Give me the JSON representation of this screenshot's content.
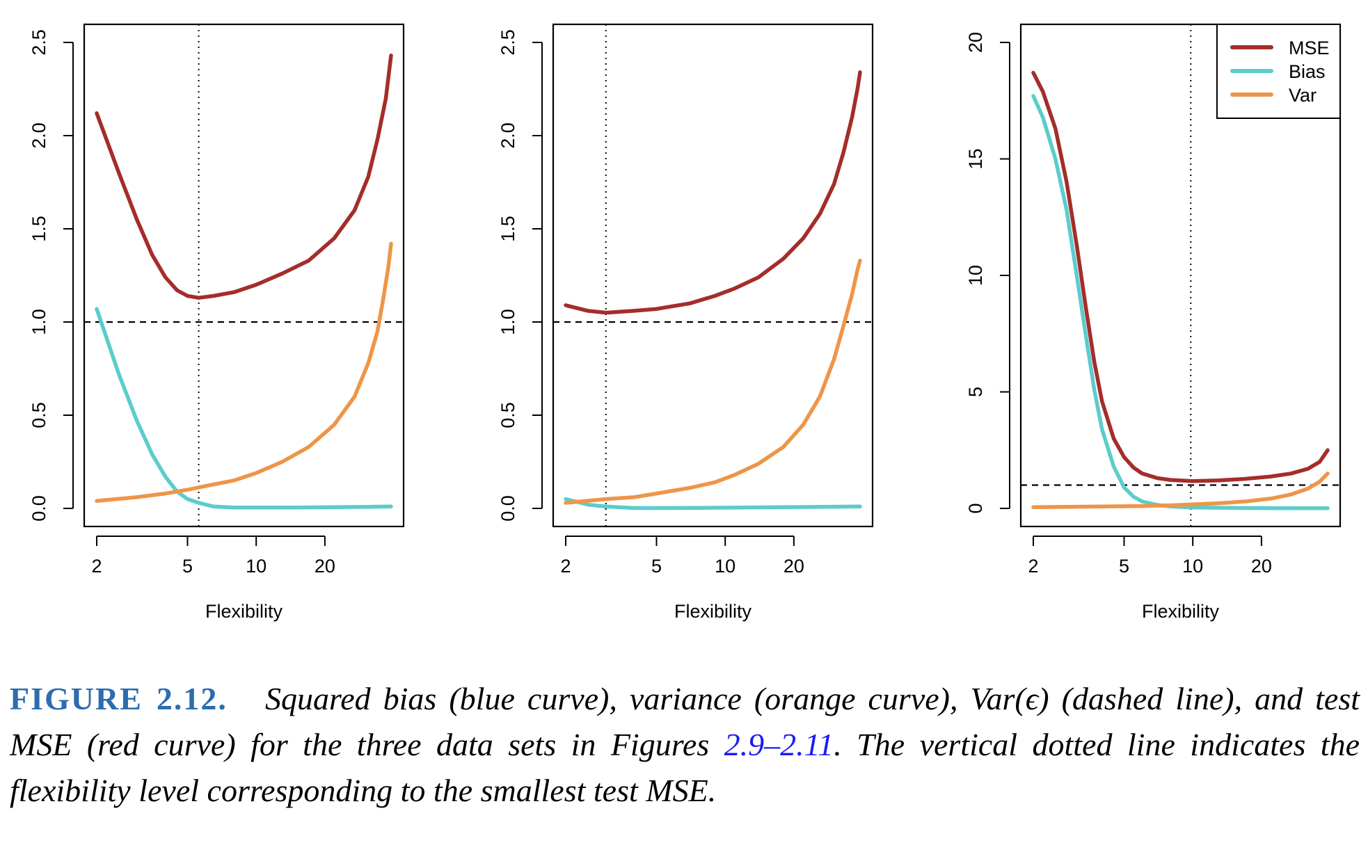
{
  "colors": {
    "mse": "#a42d2a",
    "bias": "#5ccccc",
    "var": "#ee9549"
  },
  "chart_data": [
    {
      "type": "line",
      "xscale": "log",
      "xlabel": "Flexibility",
      "xticks": [
        2,
        5,
        10,
        20
      ],
      "ylim": [
        0,
        2.5
      ],
      "yticks": [
        "0.0",
        "0.5",
        "1.0",
        "1.5",
        "2.0",
        "2.5"
      ],
      "hline": 1.0,
      "vline": 5.6,
      "series": [
        {
          "key": "mse",
          "x": [
            2,
            2.5,
            3,
            3.5,
            4,
            4.5,
            5,
            5.6,
            6.5,
            8,
            10,
            13,
            17,
            22,
            27,
            31,
            34,
            37,
            39
          ],
          "y": [
            2.12,
            1.8,
            1.55,
            1.36,
            1.24,
            1.17,
            1.14,
            1.13,
            1.14,
            1.16,
            1.2,
            1.26,
            1.33,
            1.45,
            1.6,
            1.78,
            1.98,
            2.2,
            2.43
          ]
        },
        {
          "key": "bias",
          "x": [
            2,
            2.5,
            3,
            3.5,
            4,
            4.5,
            5,
            5.6,
            6.5,
            8,
            10,
            15,
            20,
            30,
            39
          ],
          "y": [
            1.07,
            0.72,
            0.47,
            0.29,
            0.17,
            0.09,
            0.05,
            0.03,
            0.01,
            0.005,
            0.005,
            0.005,
            0.006,
            0.008,
            0.01
          ]
        },
        {
          "key": "var",
          "x": [
            2,
            3,
            4,
            5,
            6,
            8,
            10,
            13,
            17,
            22,
            27,
            31,
            34,
            36,
            38,
            39
          ],
          "y": [
            0.04,
            0.06,
            0.08,
            0.1,
            0.12,
            0.15,
            0.19,
            0.25,
            0.33,
            0.45,
            0.6,
            0.78,
            0.95,
            1.12,
            1.3,
            1.42
          ]
        }
      ]
    },
    {
      "type": "line",
      "xscale": "log",
      "xlabel": "Flexibility",
      "xticks": [
        2,
        5,
        10,
        20
      ],
      "ylim": [
        0,
        2.5
      ],
      "yticks": [
        "0.0",
        "0.5",
        "1.0",
        "1.5",
        "2.0",
        "2.5"
      ],
      "hline": 1.0,
      "vline": 3.0,
      "series": [
        {
          "key": "mse",
          "x": [
            2,
            2.5,
            3,
            4,
            5,
            7,
            9,
            11,
            14,
            18,
            22,
            26,
            30,
            33,
            36,
            38,
            39
          ],
          "y": [
            1.09,
            1.06,
            1.05,
            1.06,
            1.07,
            1.1,
            1.14,
            1.18,
            1.24,
            1.34,
            1.45,
            1.58,
            1.74,
            1.91,
            2.1,
            2.25,
            2.34
          ]
        },
        {
          "key": "bias",
          "x": [
            2,
            2.5,
            3,
            4,
            5,
            8,
            12,
            20,
            30,
            39
          ],
          "y": [
            0.05,
            0.02,
            0.01,
            0.002,
            0.002,
            0.003,
            0.005,
            0.007,
            0.009,
            0.01
          ]
        },
        {
          "key": "var",
          "x": [
            2,
            3,
            4,
            5,
            7,
            9,
            11,
            14,
            18,
            22,
            26,
            30,
            33,
            36,
            38,
            39
          ],
          "y": [
            0.03,
            0.05,
            0.06,
            0.08,
            0.11,
            0.14,
            0.18,
            0.24,
            0.33,
            0.45,
            0.6,
            0.8,
            0.98,
            1.15,
            1.28,
            1.33
          ]
        }
      ]
    },
    {
      "type": "line",
      "xscale": "log",
      "xlabel": "Flexibility",
      "xticks": [
        2,
        5,
        10,
        20
      ],
      "ylim": [
        0,
        20
      ],
      "yticks": [
        "0",
        "5",
        "10",
        "15",
        "20"
      ],
      "hline": 1.0,
      "vline": 9.8,
      "legend": {
        "position": "top-right",
        "entries": [
          {
            "key": "mse",
            "label": "MSE"
          },
          {
            "key": "bias",
            "label": "Bias"
          },
          {
            "key": "var",
            "label": "Var"
          }
        ]
      },
      "series": [
        {
          "key": "mse",
          "x": [
            2,
            2.2,
            2.5,
            2.8,
            3.1,
            3.4,
            3.7,
            4,
            4.5,
            5,
            5.5,
            6,
            7,
            8,
            10,
            13,
            17,
            22,
            27,
            32,
            36,
            39
          ],
          "y": [
            18.7,
            17.9,
            16.3,
            14,
            11.3,
            8.6,
            6.3,
            4.6,
            3,
            2.2,
            1.75,
            1.5,
            1.3,
            1.22,
            1.17,
            1.2,
            1.27,
            1.37,
            1.5,
            1.7,
            2,
            2.5
          ]
        },
        {
          "key": "bias",
          "x": [
            2,
            2.2,
            2.5,
            2.8,
            3.1,
            3.4,
            3.7,
            4,
            4.5,
            5,
            5.5,
            6,
            7,
            8,
            10,
            15,
            25,
            39
          ],
          "y": [
            17.7,
            16.8,
            15,
            12.8,
            10,
            7.4,
            5.1,
            3.4,
            1.8,
            0.9,
            0.5,
            0.3,
            0.15,
            0.08,
            0.04,
            0.02,
            0.01,
            0.01
          ]
        },
        {
          "key": "var",
          "x": [
            2,
            4,
            6,
            8,
            10,
            13,
            17,
            22,
            27,
            32,
            36,
            39
          ],
          "y": [
            0.05,
            0.08,
            0.1,
            0.13,
            0.17,
            0.22,
            0.3,
            0.42,
            0.6,
            0.85,
            1.15,
            1.5
          ]
        }
      ]
    }
  ],
  "caption": {
    "label": "FIGURE 2.12.",
    "text_a": "Squared bias (blue curve), variance (orange curve), Var(ϵ) (dashed line), and test MSE (red curve) for the three data sets in Figures ",
    "link": "2.9–2.11",
    "text_b": ". The vertical dotted line indicates the flexibility level corresponding to the smallest test MSE."
  }
}
